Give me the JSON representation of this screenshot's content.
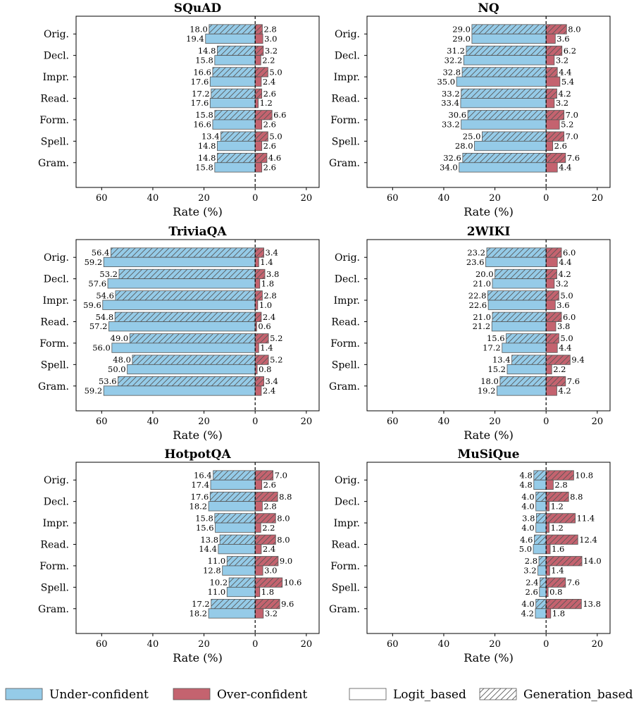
{
  "legend": {
    "items": [
      {
        "label": "Under-confident",
        "swatch": "under"
      },
      {
        "label": "Over-confident",
        "swatch": "over"
      },
      {
        "label": "Logit_based",
        "swatch": "logit"
      },
      {
        "label": "Generation_based",
        "swatch": "generation"
      }
    ]
  },
  "colors": {
    "under": "#95cbe8",
    "over": "#c4636f",
    "hatch": "#555555",
    "edge": "#555555"
  },
  "chart_data": [
    {
      "type": "bar",
      "title": "SQuAD",
      "xlabel": "Rate (%)",
      "categories": [
        "Orig.",
        "Decl.",
        "Impr.",
        "Read.",
        "Form.",
        "Spell.",
        "Gram."
      ],
      "xticks": [
        -60,
        -40,
        -20,
        0,
        20
      ],
      "xtick_labels": [
        "60",
        "40",
        "20",
        "0",
        "20"
      ],
      "xlim": [
        -70,
        25
      ],
      "series": [
        {
          "name": "Under-confident / Generation_based",
          "values": [
            18.0,
            14.8,
            16.6,
            17.2,
            15.8,
            13.4,
            14.8
          ]
        },
        {
          "name": "Under-confident / Logit_based",
          "values": [
            19.4,
            15.8,
            17.6,
            17.6,
            16.6,
            14.8,
            15.8
          ]
        },
        {
          "name": "Over-confident / Generation_based",
          "values": [
            2.8,
            3.2,
            5.0,
            2.6,
            6.6,
            5.0,
            4.6
          ]
        },
        {
          "name": "Over-confident / Logit_based",
          "values": [
            3.0,
            2.2,
            2.4,
            1.2,
            2.6,
            2.6,
            2.6
          ]
        }
      ]
    },
    {
      "type": "bar",
      "title": "NQ",
      "xlabel": "Rate (%)",
      "categories": [
        "Orig.",
        "Decl.",
        "Impr.",
        "Read.",
        "Form.",
        "Spell.",
        "Gram."
      ],
      "xticks": [
        -60,
        -40,
        -20,
        0,
        20
      ],
      "xtick_labels": [
        "60",
        "40",
        "20",
        "0",
        "20"
      ],
      "xlim": [
        -70,
        25
      ],
      "series": [
        {
          "name": "Under-confident / Generation_based",
          "values": [
            29.0,
            31.2,
            32.8,
            33.2,
            30.6,
            25.0,
            32.6
          ]
        },
        {
          "name": "Under-confident / Logit_based",
          "values": [
            29.0,
            32.2,
            35.0,
            33.4,
            33.2,
            28.0,
            34.0
          ]
        },
        {
          "name": "Over-confident / Generation_based",
          "values": [
            8.0,
            6.2,
            4.4,
            4.2,
            7.0,
            7.0,
            7.6
          ]
        },
        {
          "name": "Over-confident / Logit_based",
          "values": [
            3.6,
            3.2,
            5.4,
            3.2,
            5.2,
            2.6,
            4.4
          ]
        }
      ]
    },
    {
      "type": "bar",
      "title": "TriviaQA",
      "xlabel": "Rate (%)",
      "categories": [
        "Orig.",
        "Decl.",
        "Impr.",
        "Read.",
        "Form.",
        "Spell.",
        "Gram."
      ],
      "xticks": [
        -60,
        -40,
        -20,
        0,
        20
      ],
      "xtick_labels": [
        "60",
        "40",
        "20",
        "0",
        "20"
      ],
      "xlim": [
        -70,
        25
      ],
      "series": [
        {
          "name": "Under-confident / Generation_based",
          "values": [
            56.4,
            53.2,
            54.6,
            54.8,
            49.0,
            48.0,
            53.6
          ]
        },
        {
          "name": "Under-confident / Logit_based",
          "values": [
            59.2,
            57.6,
            59.6,
            57.2,
            56.0,
            50.0,
            59.2
          ]
        },
        {
          "name": "Over-confident / Generation_based",
          "values": [
            3.4,
            3.8,
            2.8,
            2.4,
            5.2,
            5.2,
            3.4
          ]
        },
        {
          "name": "Over-confident / Logit_based",
          "values": [
            1.4,
            1.8,
            1.0,
            0.6,
            1.4,
            0.8,
            2.4
          ]
        }
      ]
    },
    {
      "type": "bar",
      "title": "2WIKI",
      "xlabel": "Rate (%)",
      "categories": [
        "Orig.",
        "Decl.",
        "Impr.",
        "Read.",
        "Form.",
        "Spell.",
        "Gram."
      ],
      "xticks": [
        -60,
        -40,
        -20,
        0,
        20
      ],
      "xtick_labels": [
        "60",
        "40",
        "20",
        "0",
        "20"
      ],
      "xlim": [
        -70,
        25
      ],
      "series": [
        {
          "name": "Under-confident / Generation_based",
          "values": [
            23.2,
            20.0,
            22.8,
            21.0,
            15.6,
            13.4,
            18.0
          ]
        },
        {
          "name": "Under-confident / Logit_based",
          "values": [
            23.6,
            21.0,
            22.6,
            21.2,
            17.2,
            15.2,
            19.2
          ]
        },
        {
          "name": "Over-confident / Generation_based",
          "values": [
            6.0,
            4.2,
            5.0,
            6.0,
            5.0,
            9.4,
            7.6
          ]
        },
        {
          "name": "Over-confident / Logit_based",
          "values": [
            4.4,
            3.2,
            3.6,
            3.8,
            4.4,
            2.2,
            4.2
          ]
        }
      ]
    },
    {
      "type": "bar",
      "title": "HotpotQA",
      "xlabel": "Rate (%)",
      "categories": [
        "Orig.",
        "Decl.",
        "Impr.",
        "Read.",
        "Form.",
        "Spell.",
        "Gram."
      ],
      "xticks": [
        -60,
        -40,
        -20,
        0,
        20
      ],
      "xtick_labels": [
        "60",
        "40",
        "20",
        "0",
        "20"
      ],
      "xlim": [
        -70,
        25
      ],
      "series": [
        {
          "name": "Under-confident / Generation_based",
          "values": [
            16.4,
            17.6,
            15.8,
            13.8,
            11.0,
            10.2,
            17.2
          ]
        },
        {
          "name": "Under-confident / Logit_based",
          "values": [
            17.4,
            18.2,
            15.6,
            14.4,
            12.8,
            11.0,
            18.2
          ]
        },
        {
          "name": "Over-confident / Generation_based",
          "values": [
            7.0,
            8.8,
            8.0,
            8.0,
            9.0,
            10.6,
            9.6
          ]
        },
        {
          "name": "Over-confident / Logit_based",
          "values": [
            2.6,
            2.8,
            2.2,
            2.4,
            3.0,
            1.8,
            3.2
          ]
        }
      ]
    },
    {
      "type": "bar",
      "title": "MuSiQue",
      "xlabel": "Rate (%)",
      "categories": [
        "Orig.",
        "Decl.",
        "Impr.",
        "Read.",
        "Form.",
        "Spell.",
        "Gram."
      ],
      "xticks": [
        -60,
        -40,
        -20,
        0,
        20
      ],
      "xtick_labels": [
        "60",
        "40",
        "20",
        "0",
        "20"
      ],
      "xlim": [
        -70,
        25
      ],
      "series": [
        {
          "name": "Under-confident / Generation_based",
          "values": [
            4.8,
            4.0,
            3.8,
            4.6,
            2.8,
            2.4,
            4.0
          ]
        },
        {
          "name": "Under-confident / Logit_based",
          "values": [
            4.8,
            4.0,
            4.0,
            5.0,
            3.2,
            2.6,
            4.2
          ]
        },
        {
          "name": "Over-confident / Generation_based",
          "values": [
            10.8,
            8.8,
            11.4,
            12.4,
            14.0,
            7.6,
            13.8
          ]
        },
        {
          "name": "Over-confident / Logit_based",
          "values": [
            2.8,
            1.2,
            1.2,
            1.6,
            1.4,
            0.8,
            1.8
          ]
        }
      ]
    }
  ]
}
